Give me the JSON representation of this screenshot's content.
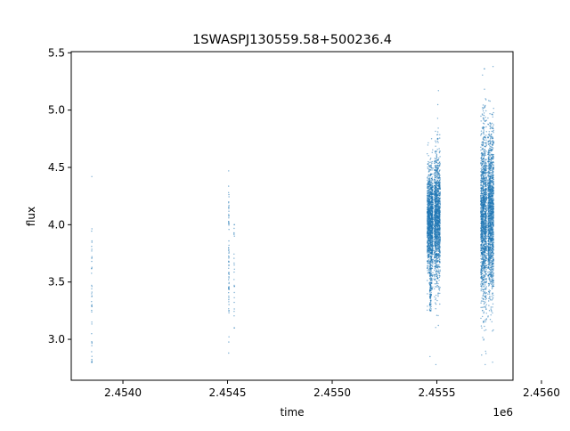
{
  "chart_data": {
    "type": "scatter",
    "title": "1SWASPJ130559.58+500236.4",
    "xlabel": "time",
    "ylabel": "flux",
    "x_offset_label": "1e6",
    "xlim": [
      2453753,
      2455864
    ],
    "ylim": [
      2.643,
      5.51
    ],
    "x_ticks": [
      2454000,
      2454500,
      2455000,
      2455500,
      2456000
    ],
    "x_tick_labels": [
      "2.4540",
      "2.4545",
      "2.4550",
      "2.4555",
      "2.4560"
    ],
    "y_ticks": [
      3.0,
      3.5,
      4.0,
      4.5,
      5.0,
      5.5
    ],
    "y_tick_labels": [
      "3.0",
      "3.5",
      "4.0",
      "4.5",
      "5.0",
      "5.5"
    ],
    "grid": false,
    "marker_color": "#1f77b4",
    "point_groups": [
      {
        "time_center": 2453851,
        "time_spread": 1,
        "flux_mean": 3.45,
        "flux_sd": 0.4,
        "flux_min": 2.8,
        "flux_max": 4.42,
        "count": 45
      },
      {
        "time_center": 2454506,
        "time_spread": 1,
        "flux_mean": 3.7,
        "flux_sd": 0.3,
        "flux_min": 2.88,
        "flux_max": 4.47,
        "count": 70
      },
      {
        "time_center": 2454532,
        "time_spread": 1,
        "flux_mean": 3.55,
        "flux_sd": 0.25,
        "flux_min": 3.1,
        "flux_max": 4.0,
        "count": 25
      },
      {
        "time_center": 2455468,
        "time_spread": 14,
        "flux_mean": 4.02,
        "flux_sd": 0.22,
        "flux_min": 2.85,
        "flux_max": 4.75,
        "count": 1400
      },
      {
        "time_center": 2455470,
        "time_spread": 4,
        "flux_mean": 3.45,
        "flux_sd": 0.12,
        "flux_min": 3.25,
        "flux_max": 3.7,
        "count": 120
      },
      {
        "time_center": 2455502,
        "time_spread": 14,
        "flux_mean": 4.05,
        "flux_sd": 0.28,
        "flux_min": 2.78,
        "flux_max": 5.17,
        "count": 1400
      },
      {
        "time_center": 2455724,
        "time_spread": 14,
        "flux_mean": 4.05,
        "flux_sd": 0.38,
        "flux_min": 2.78,
        "flux_max": 5.36,
        "count": 1500
      },
      {
        "time_center": 2455758,
        "time_spread": 14,
        "flux_mean": 4.1,
        "flux_sd": 0.35,
        "flux_min": 2.8,
        "flux_max": 5.38,
        "count": 1500
      }
    ]
  }
}
